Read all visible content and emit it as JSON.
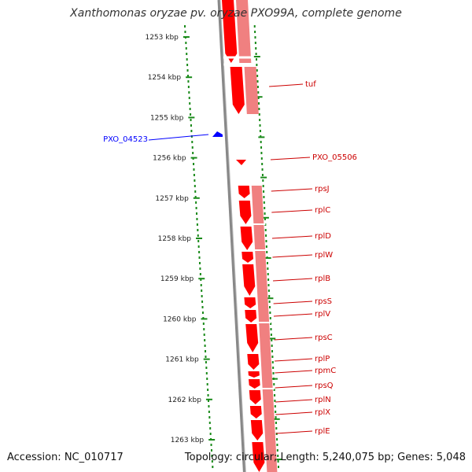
{
  "title": "Xanthomonas oryzae pv. oryzae PXO99A, complete genome",
  "footer": {
    "accession": "Accession: NC_010717",
    "summary": "Topology: circular; Length: 5,240,075 bp; Genes: 5,048"
  },
  "colors": {
    "background": "#ffffff",
    "ticks": "#1a8a1a",
    "forward_genes": "#ff0000",
    "forward_genes_light": "#f08080",
    "reverse_genes": "#0000ff",
    "backbone": "#888888",
    "label_text": "#cc0000"
  },
  "scale": {
    "unit": "kbp",
    "ticks": [
      {
        "label": "1253 kbp"
      },
      {
        "label": "1254 kbp"
      },
      {
        "label": "1255 kbp"
      },
      {
        "label": "1256 kbp"
      },
      {
        "label": "1257 kbp"
      },
      {
        "label": "1258 kbp"
      },
      {
        "label": "1259 kbp"
      },
      {
        "label": "1260 kbp"
      },
      {
        "label": "1261 kbp"
      },
      {
        "label": "1262 kbp"
      },
      {
        "label": "1263 kbp"
      }
    ]
  },
  "gene_labels": [
    {
      "name": "tuf",
      "strand": "forward"
    },
    {
      "name": "PXO_04523",
      "strand": "reverse"
    },
    {
      "name": "PXO_05506",
      "strand": "forward"
    },
    {
      "name": "rpsJ",
      "strand": "forward"
    },
    {
      "name": "rplC",
      "strand": "forward"
    },
    {
      "name": "rplD",
      "strand": "forward"
    },
    {
      "name": "rplW",
      "strand": "forward"
    },
    {
      "name": "rplB",
      "strand": "forward"
    },
    {
      "name": "rpsS",
      "strand": "forward"
    },
    {
      "name": "rplV",
      "strand": "forward"
    },
    {
      "name": "rpsC",
      "strand": "forward"
    },
    {
      "name": "rplP",
      "strand": "forward"
    },
    {
      "name": "rpmC",
      "strand": "forward"
    },
    {
      "name": "rpsQ",
      "strand": "forward"
    },
    {
      "name": "rplN",
      "strand": "forward"
    },
    {
      "name": "rplX",
      "strand": "forward"
    },
    {
      "name": "rplE",
      "strand": "forward"
    }
  ]
}
